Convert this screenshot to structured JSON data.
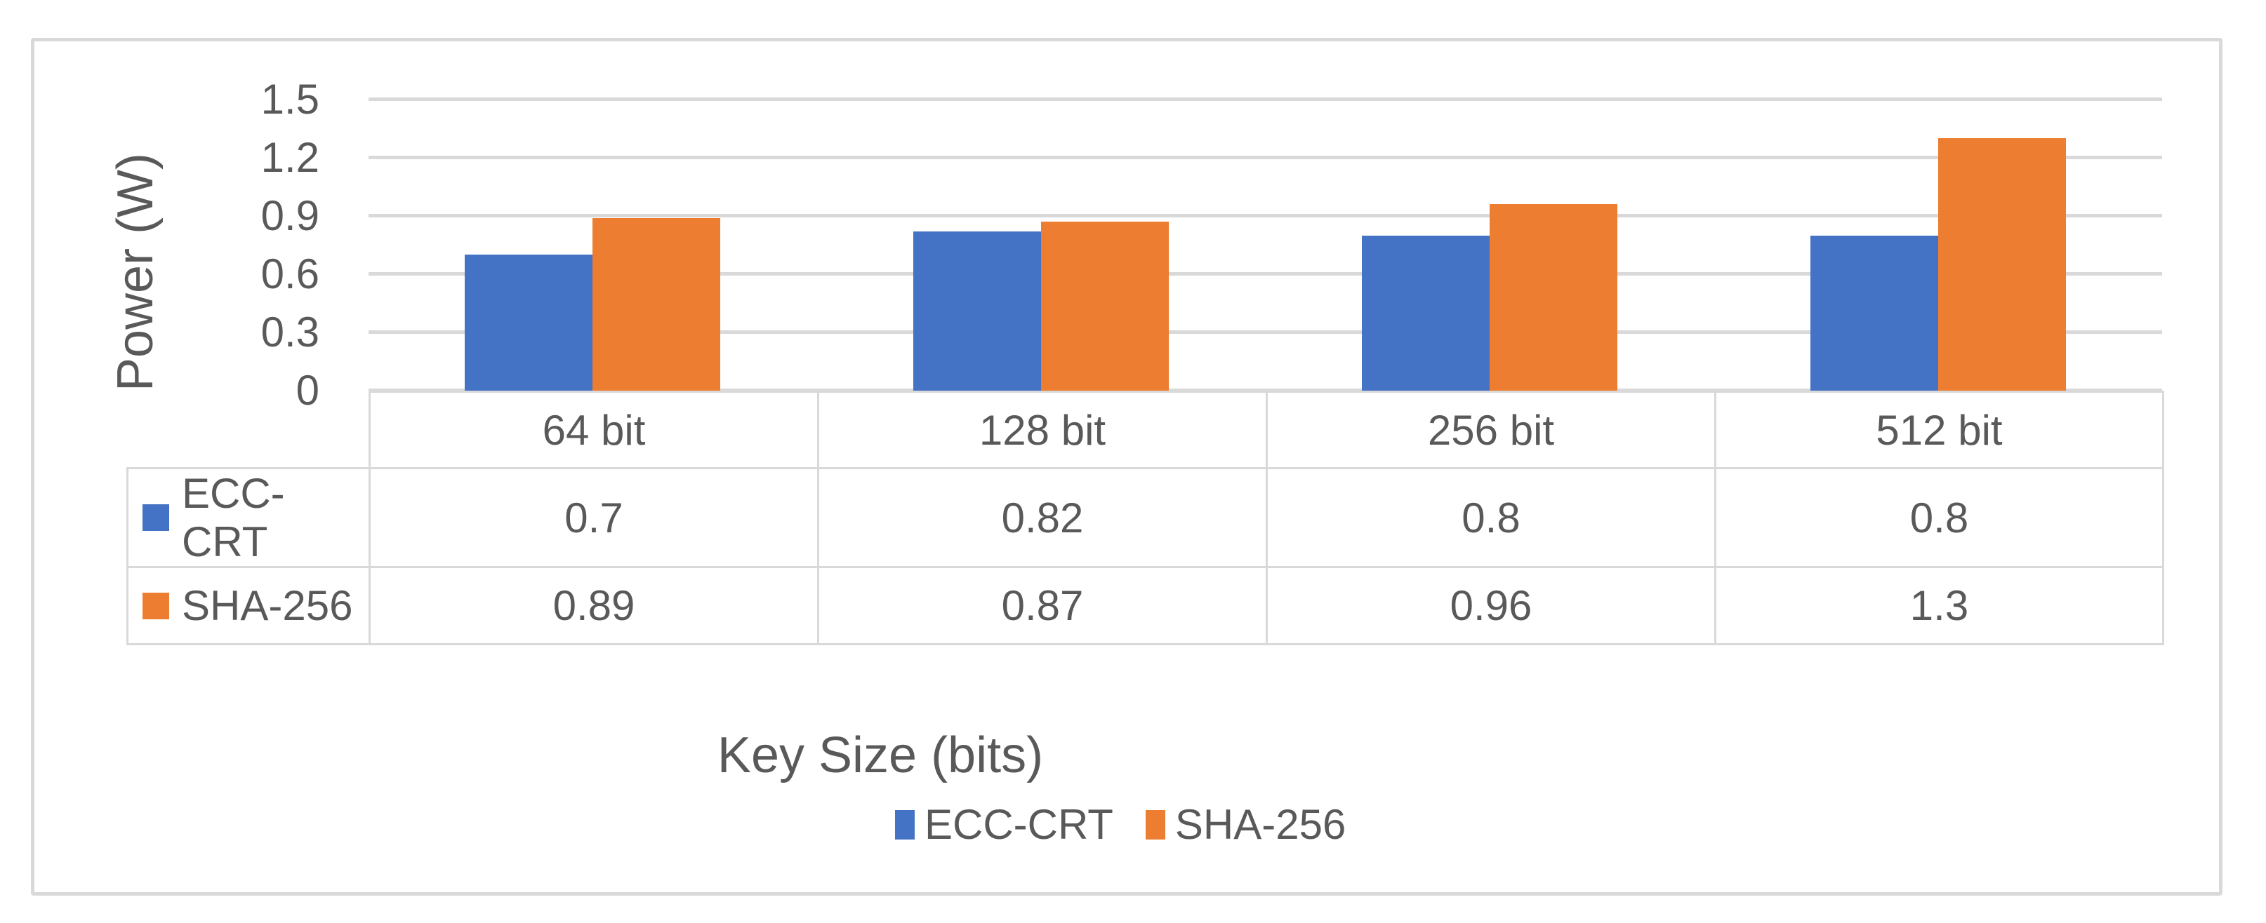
{
  "chart_data": {
    "type": "bar",
    "title": "",
    "categories": [
      "64 bit",
      "128 bit",
      "256 bit",
      "512 bit"
    ],
    "series": [
      {
        "name": "ECC-CRT",
        "color": "#4472C4",
        "values": [
          0.7,
          0.82,
          0.8,
          0.8
        ]
      },
      {
        "name": "SHA-256",
        "color": "#ED7D31",
        "values": [
          0.89,
          0.87,
          0.96,
          1.3
        ]
      }
    ],
    "xlabel": "Key Size (bits)",
    "ylabel": "Power (W)",
    "ylim": [
      0,
      1.5
    ],
    "yticks": [
      0,
      0.3,
      0.6,
      0.9,
      1.2,
      1.5
    ],
    "grid": true,
    "legend_position": "bottom",
    "data_table_shown": true
  },
  "y_axis": {
    "tick_labels": [
      "1.5",
      "1.2",
      "0.9",
      "0.6",
      "0.3",
      "0"
    ]
  },
  "table": {
    "column_headers": [
      "64 bit",
      "128 bit",
      "256 bit",
      "512 bit"
    ],
    "row_labels": [
      "ECC-CRT",
      "SHA-256"
    ],
    "rows": [
      [
        "0.7",
        "0.82",
        "0.8",
        "0.8"
      ],
      [
        "0.89",
        "0.87",
        "0.96",
        "1.3"
      ]
    ]
  },
  "legend": {
    "items": [
      {
        "label": "ECC-CRT",
        "color": "#4472C4"
      },
      {
        "label": "SHA-256",
        "color": "#ED7D31"
      }
    ]
  },
  "colors": {
    "text": "#595959",
    "grid": "#D9D9D9",
    "background": "#FFFFFF"
  }
}
